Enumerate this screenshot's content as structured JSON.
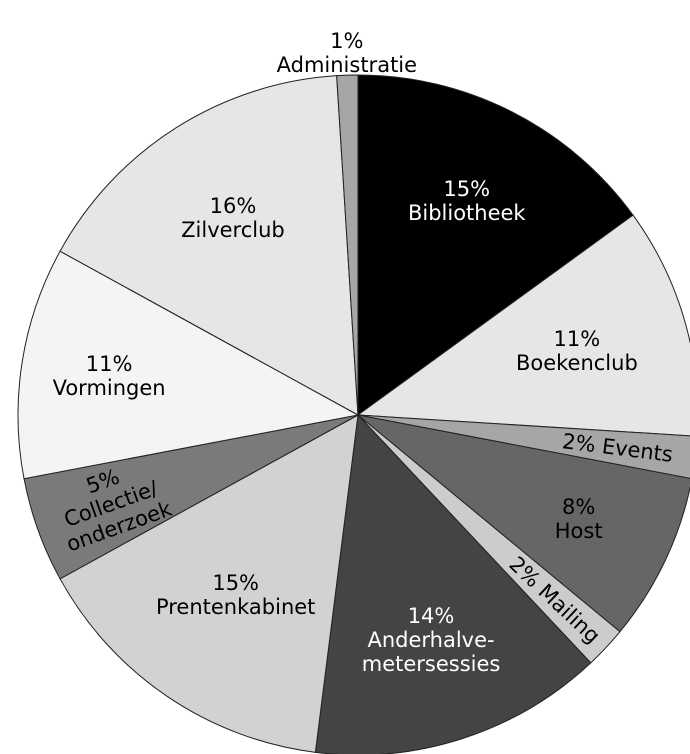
{
  "chart_data": {
    "type": "pie",
    "categories": [
      "Bibliotheek",
      "Boekenclub",
      "Events",
      "Host",
      "Mailing",
      "Anderhalve-\nmetersessies",
      "Prentenkabinet",
      "Collectie/\nonderzoek",
      "Vormingen",
      "Zilverclub",
      "Administratie"
    ],
    "values": [
      15,
      11,
      2,
      8,
      2,
      14,
      15,
      5,
      11,
      16,
      1
    ],
    "value_labels": [
      "15%",
      "11%",
      "2%",
      "8%",
      "2%",
      "14%",
      "15%",
      "5%",
      "11%",
      "16%",
      "1%"
    ],
    "colors": [
      "#000000",
      "#e6e6e6",
      "#a6a6a6",
      "#666666",
      "#cccccc",
      "#444444",
      "#d2d2d2",
      "#7a7a7a",
      "#f4f4f4",
      "#e6e6e6",
      "#a6a6a6"
    ]
  }
}
